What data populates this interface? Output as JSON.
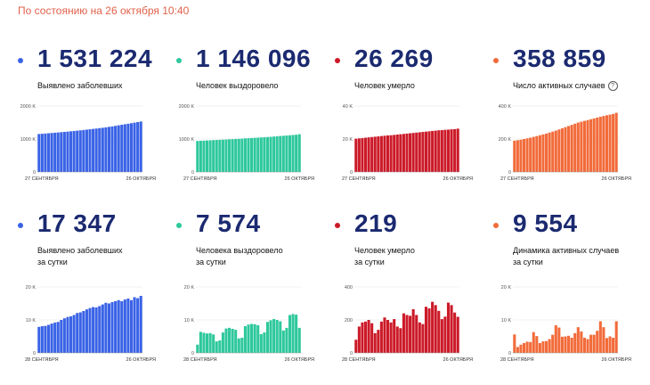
{
  "header": {
    "status_text": "По состоянию на 26 октября 10:40"
  },
  "colors": {
    "header": "#e0614a",
    "number": "#1b2a70"
  },
  "cards": [
    {
      "number": "1 531 224",
      "label1": "Выявлено заболевших",
      "label2": "",
      "color": "#3a63e6",
      "help": false
    },
    {
      "number": "1 146 096",
      "label1": "Человек выздоровело",
      "label2": "",
      "color": "#2ec89c",
      "help": false
    },
    {
      "number": "26 269",
      "label1": "Человек умерло",
      "label2": "",
      "color": "#cc1a28",
      "help": false
    },
    {
      "number": "358 859",
      "label1": "Число активных случаев",
      "label2": "",
      "color": "#f26b3a",
      "help": true,
      "help_glyph": "?"
    },
    {
      "number": "17 347",
      "label1": "Выявлено заболевших",
      "label2": "за сутки",
      "color": "#3a63e6",
      "help": false
    },
    {
      "number": "7 574",
      "label1": "Человека выздоровело",
      "label2": "за сутки",
      "color": "#2ec89c",
      "help": false
    },
    {
      "number": "219",
      "label1": "Человек умерло",
      "label2": "за сутки",
      "color": "#cc1a28",
      "help": false
    },
    {
      "number": "9 554",
      "label1": "Динамика активных случаев",
      "label2": "за сутки",
      "color": "#f26b3a",
      "help": false
    }
  ],
  "chart_data": [
    {
      "type": "bar",
      "color": "#3a63e6",
      "yticks": [
        "0",
        "1000 K",
        "2000 K"
      ],
      "ylim": [
        0,
        2000
      ],
      "x_start": "27 СЕНТЯБРЯ",
      "x_end": "26 ОКТЯБРЯ",
      "values": [
        1152,
        1159,
        1167,
        1175,
        1183,
        1191,
        1199,
        1207,
        1216,
        1225,
        1234,
        1244,
        1253,
        1263,
        1274,
        1285,
        1296,
        1307,
        1318,
        1330,
        1341,
        1354,
        1369,
        1383,
        1399,
        1416,
        1432,
        1448,
        1464,
        1480,
        1497,
        1514,
        1531
      ]
    },
    {
      "type": "bar",
      "color": "#2ec89c",
      "yticks": [
        "0",
        "1000 K",
        "2000 K"
      ],
      "ylim": [
        0,
        2000
      ],
      "x_start": "27 СЕНТЯБРЯ",
      "x_end": "26 ОКТЯБРЯ",
      "values": [
        942,
        947,
        952,
        957,
        962,
        967,
        972,
        977,
        981,
        986,
        992,
        997,
        1002,
        1007,
        1013,
        1020,
        1026,
        1031,
        1037,
        1042,
        1049,
        1055,
        1061,
        1067,
        1075,
        1084,
        1092,
        1099,
        1106,
        1114,
        1123,
        1131,
        1146
      ]
    },
    {
      "type": "bar",
      "color": "#cc1a28",
      "yticks": [
        "0",
        "20 K",
        "40 K"
      ],
      "ylim": [
        0,
        40
      ],
      "x_start": "27 СЕНТЯБРЯ",
      "x_end": "26 ОКТЯБРЯ",
      "values": [
        20.2,
        20.4,
        20.6,
        20.8,
        21.0,
        21.2,
        21.4,
        21.6,
        21.8,
        22.0,
        22.2,
        22.3,
        22.5,
        22.7,
        22.9,
        23.1,
        23.3,
        23.5,
        23.7,
        23.9,
        24.1,
        24.3,
        24.5,
        24.7,
        24.9,
        25.1,
        25.3,
        25.4,
        25.6,
        25.7,
        25.9,
        26.0,
        26.3
      ]
    },
    {
      "type": "bar",
      "color": "#f26b3a",
      "yticks": [
        "0",
        "200 K",
        "400 K"
      ],
      "ylim": [
        0,
        400
      ],
      "x_start": "27 СЕНТЯБРЯ",
      "x_end": "26 ОКТЯБРЯ",
      "values": [
        190,
        193,
        196,
        200,
        204,
        208,
        213,
        218,
        223,
        228,
        233,
        239,
        245,
        251,
        258,
        265,
        272,
        279,
        286,
        293,
        300,
        305,
        310,
        315,
        320,
        325,
        330,
        335,
        340,
        344,
        348,
        352,
        359
      ]
    },
    {
      "type": "bar",
      "color": "#3a63e6",
      "yticks": [
        "0",
        "10 K",
        "20 K"
      ],
      "ylim": [
        0,
        20
      ],
      "x_start": "28 СЕНТЯБРЯ",
      "x_end": "26 ОКТЯБРЯ",
      "values": [
        7.9,
        8.1,
        8.2,
        8.5,
        8.9,
        9.2,
        9.4,
        10.0,
        10.5,
        10.9,
        11.1,
        11.5,
        12.1,
        12.3,
        12.7,
        13.2,
        13.6,
        13.9,
        13.8,
        14.2,
        14.7,
        15.2,
        15.0,
        15.4,
        15.7,
        16.0,
        15.7,
        16.2,
        16.5,
        16.0,
        16.9,
        16.6,
        17.3
      ]
    },
    {
      "type": "bar",
      "color": "#2ec89c",
      "yticks": [
        "0",
        "10 K",
        "20 K"
      ],
      "ylim": [
        0,
        20
      ],
      "x_start": "28 СЕНТЯБРЯ",
      "x_end": "26 ОКТЯБРЯ",
      "values": [
        2.5,
        6.4,
        6.1,
        5.9,
        6.0,
        5.6,
        3.5,
        3.8,
        6.2,
        7.4,
        7.6,
        7.3,
        7.0,
        4.4,
        4.6,
        8.1,
        8.6,
        8.8,
        8.7,
        8.4,
        5.7,
        6.2,
        9.4,
        9.9,
        10.3,
        10.0,
        9.6,
        6.8,
        7.6,
        11.5,
        11.8,
        11.6,
        7.6
      ]
    },
    {
      "type": "bar",
      "color": "#cc1a28",
      "yticks": [
        "0",
        "200",
        "400"
      ],
      "ylim": [
        0,
        400
      ],
      "x_start": "28 СЕНТЯБРЯ",
      "x_end": "26 ОКТЯБРЯ",
      "values": [
        80,
        160,
        185,
        190,
        200,
        180,
        120,
        140,
        190,
        215,
        200,
        185,
        205,
        160,
        150,
        240,
        230,
        225,
        265,
        230,
        185,
        175,
        280,
        270,
        310,
        290,
        255,
        205,
        220,
        305,
        290,
        245,
        219
      ]
    },
    {
      "type": "bar",
      "color": "#f26b3a",
      "yticks": [
        "0",
        "10 K",
        "20 K"
      ],
      "ylim": [
        0,
        20
      ],
      "x_start": "28 СЕНТЯБРЯ",
      "x_end": "26 ОКТЯБРЯ",
      "values": [
        5.6,
        1.8,
        2.5,
        3.0,
        3.4,
        3.3,
        6.3,
        5.1,
        3.0,
        3.5,
        3.6,
        4.2,
        5.5,
        8.4,
        7.7,
        4.9,
        5.0,
        5.2,
        4.6,
        6.0,
        7.8,
        6.5,
        4.6,
        4.2,
        5.5,
        5.5,
        6.7,
        9.6,
        7.8,
        4.5,
        5.0,
        4.6,
        9.6
      ]
    }
  ]
}
